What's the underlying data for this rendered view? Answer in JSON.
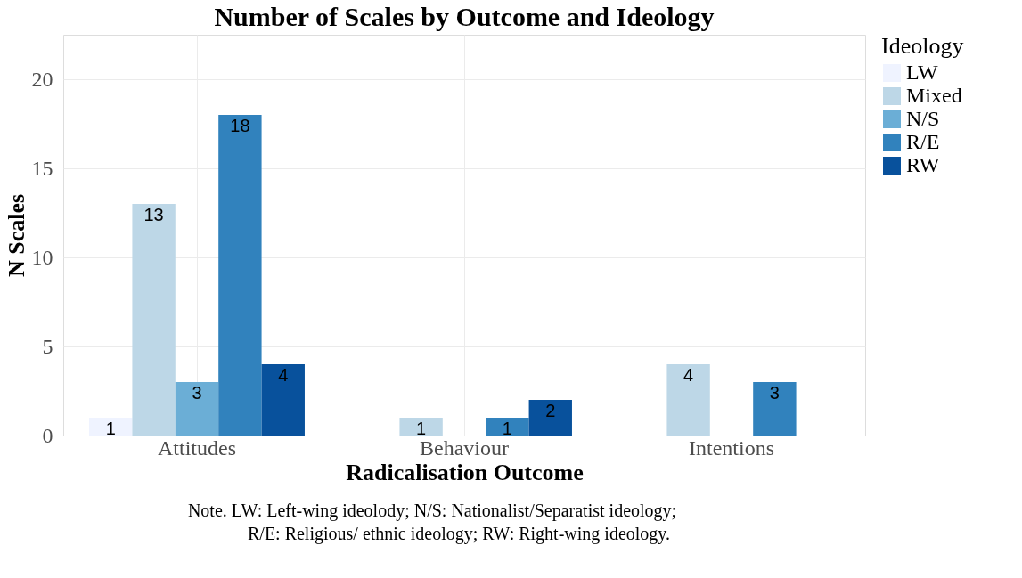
{
  "chart_data": {
    "type": "bar",
    "title": "Number of Scales by Outcome and Ideology",
    "xlabel": "Radicalisation Outcome",
    "ylabel": "N Scales",
    "legend_title": "Ideology",
    "categories": [
      "Attitudes",
      "Behaviour",
      "Intentions"
    ],
    "series": [
      {
        "name": "LW",
        "color": "#eff3ff",
        "values": [
          1,
          null,
          null
        ]
      },
      {
        "name": "Mixed",
        "color": "#bdd7e7",
        "values": [
          13,
          1,
          4
        ]
      },
      {
        "name": "N/S",
        "color": "#6baed6",
        "values": [
          3,
          null,
          null
        ]
      },
      {
        "name": "R/E",
        "color": "#3182bd",
        "values": [
          18,
          1,
          3
        ]
      },
      {
        "name": "RW",
        "color": "#08519c",
        "values": [
          4,
          2,
          null
        ]
      }
    ],
    "ylim": [
      0,
      22.5
    ],
    "yticks": [
      0,
      5,
      10,
      15,
      20
    ],
    "grid": true,
    "legend": "right",
    "data_labels": true,
    "annotations": [
      "Note. LW: Left-wing ideolody; N/S: Nationalist/Separatist ideology;",
      "R/E: Religious/ ethnic ideology; RW: Right-wing ideology."
    ]
  }
}
